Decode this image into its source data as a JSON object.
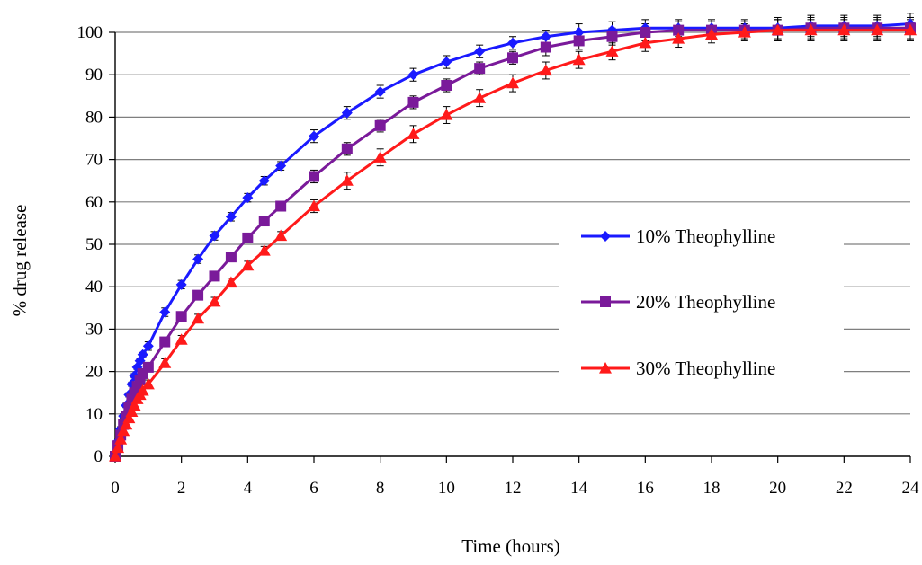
{
  "chart_data": {
    "type": "line",
    "title": "",
    "xlabel": "Time (hours)",
    "ylabel": "% drug release",
    "xlim": [
      0,
      24
    ],
    "ylim": [
      0,
      100
    ],
    "xticks": [
      0,
      2,
      4,
      6,
      8,
      10,
      12,
      14,
      16,
      18,
      20,
      22,
      24
    ],
    "yticks": [
      0,
      10,
      20,
      30,
      40,
      50,
      60,
      70,
      80,
      90,
      100
    ],
    "grid": "horizontal",
    "legend_position": "center-right",
    "error_bars": true,
    "series": [
      {
        "name": "10% Theophylline",
        "color": "#1a1aff",
        "marker": "diamond",
        "x": [
          0,
          0.083,
          0.167,
          0.25,
          0.333,
          0.417,
          0.5,
          0.583,
          0.667,
          0.75,
          0.833,
          1,
          1.5,
          2,
          2.5,
          3,
          3.5,
          4,
          4.5,
          5,
          6,
          7,
          8,
          9,
          10,
          11,
          12,
          13,
          14,
          15,
          16,
          17,
          18,
          19,
          20,
          21,
          22,
          23,
          24
        ],
        "y": [
          0,
          3.5,
          6.5,
          9.5,
          12,
          14.5,
          17,
          19,
          21,
          22.5,
          24,
          26,
          34,
          40.5,
          46.5,
          52,
          56.5,
          61,
          65,
          68.5,
          75.5,
          81,
          86,
          90,
          93,
          95.5,
          97.5,
          99,
          100,
          100.5,
          101,
          101,
          101,
          101,
          101,
          101.5,
          101.5,
          101.5,
          102
        ],
        "error": [
          0,
          0.5,
          0.5,
          0.5,
          0.5,
          0.5,
          0.5,
          0.5,
          0.5,
          0.5,
          0.5,
          1,
          1,
          1,
          1,
          1,
          1,
          1,
          1,
          1,
          1.5,
          1.5,
          1.5,
          1.5,
          1.5,
          1.5,
          1.5,
          1.5,
          2,
          2,
          2,
          2,
          2,
          2,
          2.5,
          2.5,
          2.5,
          2.5,
          2.5
        ]
      },
      {
        "name": "20% Theophylline",
        "color": "#7a1a9a",
        "marker": "square",
        "x": [
          0,
          0.083,
          0.167,
          0.25,
          0.333,
          0.417,
          0.5,
          0.583,
          0.667,
          0.75,
          0.833,
          1,
          1.5,
          2,
          2.5,
          3,
          3.5,
          4,
          4.5,
          5,
          6,
          7,
          8,
          9,
          10,
          11,
          12,
          13,
          14,
          15,
          16,
          17,
          18,
          19,
          20,
          21,
          22,
          23,
          24
        ],
        "y": [
          0,
          2.5,
          5,
          7.5,
          9.5,
          11.5,
          13.5,
          15,
          16.5,
          18,
          19.5,
          21,
          27,
          33,
          38,
          42.5,
          47,
          51.5,
          55.5,
          59,
          66,
          72.5,
          78,
          83.5,
          87.5,
          91.5,
          94,
          96.5,
          98,
          99,
          100,
          100.5,
          100.5,
          100.5,
          100.5,
          101,
          101,
          101,
          101
        ],
        "error": [
          0,
          0.5,
          0.5,
          0.5,
          0.5,
          0.5,
          0.5,
          0.5,
          0.5,
          0.5,
          0.5,
          1,
          1,
          1,
          1,
          1,
          1,
          1,
          1,
          1,
          1.5,
          1.5,
          1.5,
          1.5,
          1.5,
          1.5,
          1.5,
          2,
          2,
          2,
          2,
          2,
          2,
          2,
          2.5,
          2.5,
          2.5,
          2.5,
          2.5
        ]
      },
      {
        "name": "30% Theophylline",
        "color": "#ff1a1a",
        "marker": "triangle",
        "x": [
          0,
          0.083,
          0.167,
          0.25,
          0.333,
          0.417,
          0.5,
          0.583,
          0.667,
          0.75,
          0.833,
          1,
          1.5,
          2,
          2.5,
          3,
          3.5,
          4,
          4.5,
          5,
          6,
          7,
          8,
          9,
          10,
          11,
          12,
          13,
          14,
          15,
          16,
          17,
          18,
          19,
          20,
          21,
          22,
          23,
          24
        ],
        "y": [
          0,
          2,
          4,
          6,
          7.5,
          9,
          10.5,
          12,
          13.5,
          14.5,
          15.5,
          17,
          22,
          27.5,
          32.5,
          36.5,
          41,
          45,
          48.5,
          52,
          59,
          65,
          70.5,
          76,
          80.5,
          84.5,
          88,
          91,
          93.5,
          95.5,
          97.5,
          98.5,
          99.5,
          100,
          100.5,
          100.5,
          100.5,
          100.5,
          100.5
        ],
        "error": [
          0,
          0.5,
          0.5,
          0.5,
          0.5,
          0.5,
          0.5,
          0.5,
          0.5,
          0.5,
          0.5,
          1,
          1,
          1,
          1,
          1,
          1,
          1,
          1,
          1,
          1.5,
          2,
          2,
          2,
          2,
          2,
          2,
          2,
          2,
          2,
          2,
          2,
          2,
          2,
          2.5,
          2.5,
          2.5,
          2.5,
          2.5
        ]
      }
    ]
  }
}
